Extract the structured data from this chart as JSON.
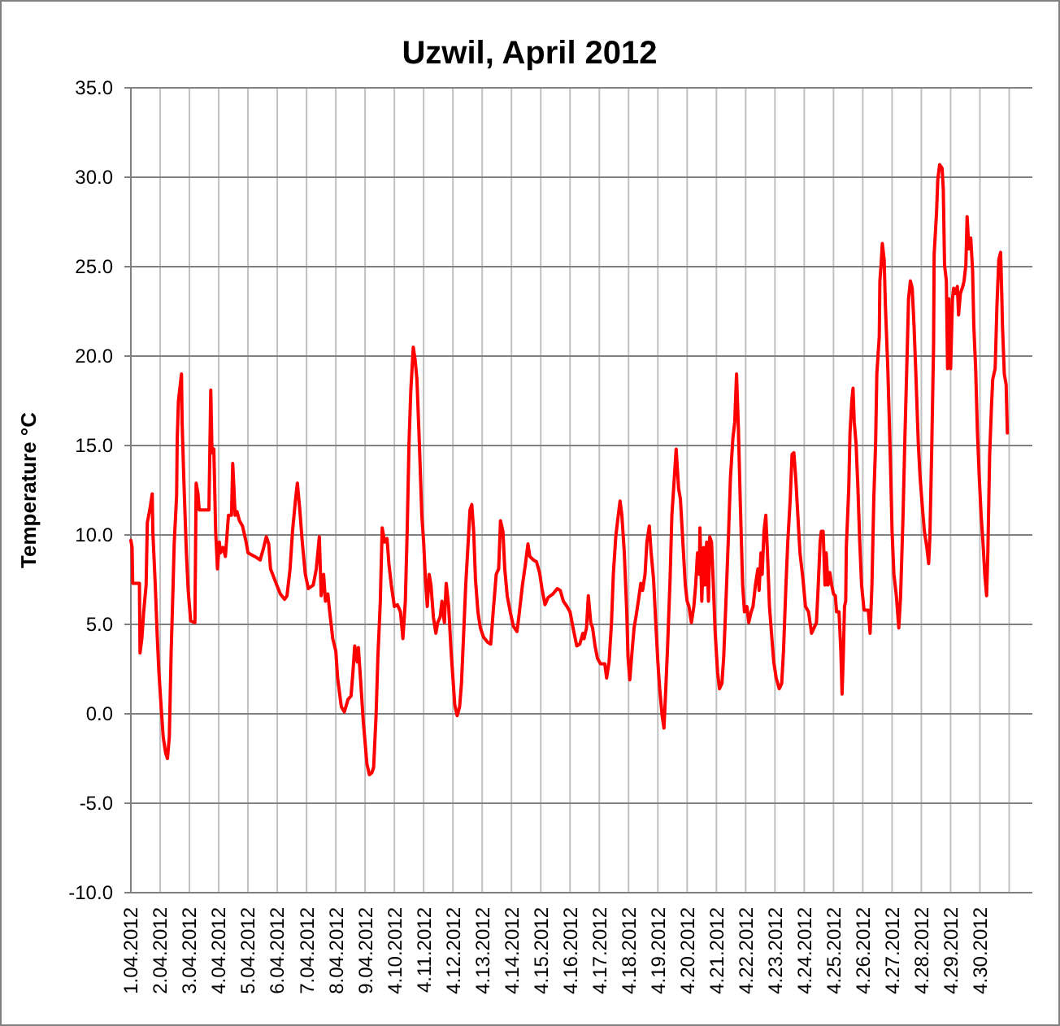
{
  "chart_data": {
    "type": "line",
    "title": "Uzwil, April 2012",
    "ylabel": "Temperature °C",
    "x": [
      "2012-04-01T00:00",
      "2012-04-01T01:00",
      "2012-04-01T01:30",
      "2012-04-01T07:00",
      "2012-04-01T07:30",
      "2012-04-01T09:00",
      "2012-04-01T10:30",
      "2012-04-01T12:30",
      "2012-04-01T13:30",
      "2012-04-01T15:30",
      "2012-04-01T17:30",
      "2012-04-01T18:00",
      "2012-04-01T20:00",
      "2012-04-01T21:30",
      "2012-04-01T23:00",
      "2012-04-02T01:00",
      "2012-04-02T02:30",
      "2012-04-02T04:30",
      "2012-04-02T06:00",
      "2012-04-02T07:30",
      "2012-04-02T09:00",
      "2012-04-02T10:30",
      "2012-04-02T11:30",
      "2012-04-02T13:30",
      "2012-04-02T14:00",
      "2012-04-02T15:00",
      "2012-04-02T16:00",
      "2012-04-02T17:30",
      "2012-04-02T18:00",
      "2012-04-02T19:30",
      "2012-04-02T21:30",
      "2012-04-02T23:00",
      "2012-04-03T01:00",
      "2012-04-03T04:30",
      "2012-04-03T05:30",
      "2012-04-03T07:00",
      "2012-04-03T08:00",
      "2012-04-03T16:00",
      "2012-04-03T17:30",
      "2012-04-03T18:30",
      "2012-04-03T20:00",
      "2012-04-03T21:30",
      "2012-04-03T23:00",
      "2012-04-04T00:30",
      "2012-04-04T01:30",
      "2012-04-04T03:30",
      "2012-04-04T05:30",
      "2012-04-04T08:00",
      "2012-04-04T10:30",
      "2012-04-04T11:30",
      "2012-04-04T13:30",
      "2012-04-04T15:00",
      "2012-04-04T17:00",
      "2012-04-04T19:30",
      "2012-04-04T22:30",
      "2012-04-05T00:00",
      "2012-04-05T05:30",
      "2012-04-05T10:00",
      "2012-04-05T12:30",
      "2012-04-05T15:00",
      "2012-04-05T17:00",
      "2012-04-05T18:30",
      "2012-04-05T23:00",
      "2012-04-06T02:30",
      "2012-04-06T06:00",
      "2012-04-06T08:00",
      "2012-04-06T10:30",
      "2012-04-06T12:30",
      "2012-04-06T15:00",
      "2012-04-06T16:30",
      "2012-04-06T18:30",
      "2012-04-06T20:30",
      "2012-04-06T23:00",
      "2012-04-07T01:30",
      "2012-04-07T05:30",
      "2012-04-07T08:00",
      "2012-04-07T10:30",
      "2012-04-07T12:00",
      "2012-04-07T14:00",
      "2012-04-07T15:30",
      "2012-04-07T17:30",
      "2012-04-07T19:00",
      "2012-04-07T21:30",
      "2012-04-08T00:00",
      "2012-04-08T01:30",
      "2012-04-08T04:30",
      "2012-04-08T07:00",
      "2012-04-08T10:00",
      "2012-04-08T12:30",
      "2012-04-08T14:00",
      "2012-04-08T15:30",
      "2012-04-08T17:30",
      "2012-04-08T18:30",
      "2012-04-08T20:30",
      "2012-04-08T22:30",
      "2012-04-09T00:00",
      "2012-04-09T01:30",
      "2012-04-09T03:30",
      "2012-04-09T05:30",
      "2012-04-09T07:00",
      "2012-04-09T09:00",
      "2012-04-09T10:30",
      "2012-04-09T12:30",
      "2012-04-09T14:00",
      "2012-04-09T16:00",
      "2012-04-09T18:00",
      "2012-04-09T19:30",
      "2012-04-09T21:30",
      "2012-04-10T00:00",
      "2012-04-10T02:30",
      "2012-04-10T05:00",
      "2012-04-10T07:00",
      "2012-04-10T09:00",
      "2012-04-10T10:30",
      "2012-04-10T12:00",
      "2012-04-10T13:30",
      "2012-04-10T15:30",
      "2012-04-10T17:00",
      "2012-04-10T18:30",
      "2012-04-10T20:30",
      "2012-04-10T22:30",
      "2012-04-11T00:00",
      "2012-04-11T01:30",
      "2012-04-11T03:00",
      "2012-04-11T04:30",
      "2012-04-11T06:00",
      "2012-04-11T08:00",
      "2012-04-11T10:00",
      "2012-04-11T11:30",
      "2012-04-11T13:30",
      "2012-04-11T15:00",
      "2012-04-11T17:00",
      "2012-04-11T18:30",
      "2012-04-11T20:30",
      "2012-04-11T22:30",
      "2012-04-12T00:00",
      "2012-04-12T01:30",
      "2012-04-12T03:30",
      "2012-04-12T05:30",
      "2012-04-12T07:00",
      "2012-04-12T09:00",
      "2012-04-12T10:30",
      "2012-04-12T12:30",
      "2012-04-12T14:00",
      "2012-04-12T15:30",
      "2012-04-12T17:00",
      "2012-04-12T18:30",
      "2012-04-12T20:30",
      "2012-04-12T22:30",
      "2012-04-13T01:00",
      "2012-04-13T04:30",
      "2012-04-13T07:00",
      "2012-04-13T09:00",
      "2012-04-13T11:30",
      "2012-04-13T13:30",
      "2012-04-13T15:00",
      "2012-04-13T17:00",
      "2012-04-13T18:30",
      "2012-04-13T20:30",
      "2012-04-13T23:00",
      "2012-04-14T01:30",
      "2012-04-14T04:30",
      "2012-04-14T06:00",
      "2012-04-14T09:00",
      "2012-04-14T11:30",
      "2012-04-14T13:30",
      "2012-04-14T15:00",
      "2012-04-14T18:00",
      "2012-04-14T20:30",
      "2012-04-14T23:00",
      "2012-04-15T01:00",
      "2012-04-15T03:30",
      "2012-04-15T06:00",
      "2012-04-15T10:00",
      "2012-04-15T13:30",
      "2012-04-15T16:00",
      "2012-04-15T18:30",
      "2012-04-15T21:30",
      "2012-04-16T00:00",
      "2012-04-16T02:30",
      "2012-04-16T05:30",
      "2012-04-16T08:00",
      "2012-04-16T10:30",
      "2012-04-16T11:30",
      "2012-04-16T13:30",
      "2012-04-16T15:00",
      "2012-04-16T17:00",
      "2012-04-16T18:30",
      "2012-04-16T20:30",
      "2012-04-16T22:30",
      "2012-04-17T01:00",
      "2012-04-17T04:30",
      "2012-04-17T06:00",
      "2012-04-17T08:00",
      "2012-04-17T10:00",
      "2012-04-17T11:30",
      "2012-04-17T13:30",
      "2012-04-17T15:00",
      "2012-04-17T17:00",
      "2012-04-17T18:30",
      "2012-04-17T20:30",
      "2012-04-17T22:30",
      "2012-04-17T23:30",
      "2012-04-18T01:00",
      "2012-04-18T02:30",
      "2012-04-18T04:30",
      "2012-04-18T06:00",
      "2012-04-18T08:00",
      "2012-04-18T10:00",
      "2012-04-18T11:30",
      "2012-04-18T13:30",
      "2012-04-18T15:00",
      "2012-04-18T17:00",
      "2012-04-18T18:30",
      "2012-04-18T20:30",
      "2012-04-18T22:30",
      "2012-04-19T00:00",
      "2012-04-19T01:30",
      "2012-04-19T03:30",
      "2012-04-19T05:00",
      "2012-04-19T06:30",
      "2012-04-19T08:00",
      "2012-04-19T10:00",
      "2012-04-19T11:30",
      "2012-04-19T13:30",
      "2012-04-19T15:00",
      "2012-04-19T17:00",
      "2012-04-19T18:30",
      "2012-04-19T20:30",
      "2012-04-19T22:30",
      "2012-04-20T00:00",
      "2012-04-20T01:30",
      "2012-04-20T03:30",
      "2012-04-20T05:30",
      "2012-04-20T07:00",
      "2012-04-20T08:30",
      "2012-04-20T10:00",
      "2012-04-20T10:30",
      "2012-04-20T12:00",
      "2012-04-20T13:30",
      "2012-04-20T14:30",
      "2012-04-20T16:00",
      "2012-04-20T17:30",
      "2012-04-20T18:30",
      "2012-04-20T20:00",
      "2012-04-20T21:30",
      "2012-04-20T23:00",
      "2012-04-21T01:00",
      "2012-04-21T02:30",
      "2012-04-21T04:30",
      "2012-04-21T06:00",
      "2012-04-21T08:00",
      "2012-04-21T10:00",
      "2012-04-21T11:30",
      "2012-04-21T13:30",
      "2012-04-21T15:00",
      "2012-04-21T16:30",
      "2012-04-21T18:00",
      "2012-04-21T19:30",
      "2012-04-21T21:30",
      "2012-04-21T23:00",
      "2012-04-22T01:00",
      "2012-04-22T02:30",
      "2012-04-22T04:30",
      "2012-04-22T06:00",
      "2012-04-22T08:00",
      "2012-04-22T10:00",
      "2012-04-22T11:00",
      "2012-04-22T12:30",
      "2012-04-22T13:30",
      "2012-04-22T15:00",
      "2012-04-22T16:30",
      "2012-04-22T18:00",
      "2012-04-22T19:30",
      "2012-04-22T21:30",
      "2012-04-22T23:00",
      "2012-04-23T01:00",
      "2012-04-23T03:30",
      "2012-04-23T05:30",
      "2012-04-23T07:00",
      "2012-04-23T09:00",
      "2012-04-23T10:30",
      "2012-04-23T12:30",
      "2012-04-23T14:00",
      "2012-04-23T15:30",
      "2012-04-23T17:00",
      "2012-04-23T18:30",
      "2012-04-23T20:30",
      "2012-04-23T23:00",
      "2012-04-24T01:00",
      "2012-04-24T03:30",
      "2012-04-24T06:00",
      "2012-04-24T08:00",
      "2012-04-24T10:00",
      "2012-04-24T11:30",
      "2012-04-24T13:00",
      "2012-04-24T14:00",
      "2012-04-24T15:30",
      "2012-04-24T17:00",
      "2012-04-24T18:00",
      "2012-04-24T19:30",
      "2012-04-24T21:00",
      "2012-04-24T22:30",
      "2012-04-25T00:00",
      "2012-04-25T01:30",
      "2012-04-25T02:30",
      "2012-04-25T04:30",
      "2012-04-25T06:00",
      "2012-04-25T07:00",
      "2012-04-25T08:00",
      "2012-04-25T09:00",
      "2012-04-25T10:00",
      "2012-04-25T10:30",
      "2012-04-25T12:30",
      "2012-04-25T13:30",
      "2012-04-25T15:00",
      "2012-04-25T16:00",
      "2012-04-25T17:00",
      "2012-04-25T18:30",
      "2012-04-25T20:00",
      "2012-04-25T21:30",
      "2012-04-25T23:00",
      "2012-04-26T01:00",
      "2012-04-26T04:30",
      "2012-04-26T06:00",
      "2012-04-26T07:30",
      "2012-04-26T09:00",
      "2012-04-26T10:30",
      "2012-04-26T11:30",
      "2012-04-26T13:30",
      "2012-04-26T14:00",
      "2012-04-26T15:00",
      "2012-04-26T16:00",
      "2012-04-26T17:30",
      "2012-04-26T18:30",
      "2012-04-26T20:30",
      "2012-04-26T22:30",
      "2012-04-27T00:00",
      "2012-04-27T01:30",
      "2012-04-27T03:30",
      "2012-04-27T05:30",
      "2012-04-27T07:00",
      "2012-04-27T09:00",
      "2012-04-27T10:30",
      "2012-04-27T12:30",
      "2012-04-27T13:30",
      "2012-04-27T15:00",
      "2012-04-27T16:30",
      "2012-04-27T18:00",
      "2012-04-27T19:30",
      "2012-04-27T21:30",
      "2012-04-27T23:00",
      "2012-04-28T01:00",
      "2012-04-28T02:30",
      "2012-04-28T04:30",
      "2012-04-28T06:00",
      "2012-04-28T07:00",
      "2012-04-28T08:30",
      "2012-04-28T10:00",
      "2012-04-28T10:30",
      "2012-04-28T12:30",
      "2012-04-28T13:30",
      "2012-04-28T15:00",
      "2012-04-28T17:00",
      "2012-04-28T18:00",
      "2012-04-28T19:00",
      "2012-04-28T20:30",
      "2012-04-28T21:30",
      "2012-04-28T22:30",
      "2012-04-29T00:00",
      "2012-04-29T01:30",
      "2012-04-29T02:30",
      "2012-04-29T04:00",
      "2012-04-29T05:30",
      "2012-04-29T06:30",
      "2012-04-29T08:00",
      "2012-04-29T10:00",
      "2012-04-29T11:00",
      "2012-04-29T12:30",
      "2012-04-29T13:30",
      "2012-04-29T15:00",
      "2012-04-29T16:30",
      "2012-04-29T18:00",
      "2012-04-29T19:00",
      "2012-04-29T20:30",
      "2012-04-29T22:00",
      "2012-04-29T23:30",
      "2012-04-30T01:00",
      "2012-04-30T02:30",
      "2012-04-30T04:00",
      "2012-04-30T05:30",
      "2012-04-30T06:30",
      "2012-04-30T08:00",
      "2012-04-30T09:30",
      "2012-04-30T10:30",
      "2012-04-30T12:30",
      "2012-04-30T14:00",
      "2012-04-30T15:30",
      "2012-04-30T17:00",
      "2012-04-30T18:00",
      "2012-04-30T18:30",
      "2012-04-30T20:00",
      "2012-04-30T21:30",
      "2012-04-30T22:30"
    ],
    "series": [
      {
        "color": "#ff0000",
        "values": [
          9.7,
          9.3,
          7.3,
          7.3,
          3.4,
          4.2,
          5.7,
          7.2,
          10.7,
          11.4,
          12.3,
          10.2,
          7.2,
          4.5,
          2.3,
          0.2,
          -1.3,
          -2.2,
          -2.5,
          -1.3,
          3.4,
          6.9,
          9.5,
          12.2,
          15.4,
          17.5,
          18.1,
          19.0,
          16.3,
          12.9,
          9.0,
          6.9,
          5.2,
          5.1,
          12.9,
          12.3,
          11.4,
          11.4,
          18.1,
          14.6,
          14.8,
          10.2,
          8.1,
          9.6,
          9.0,
          9.3,
          8.8,
          11.1,
          11.1,
          14.0,
          11.1,
          11.3,
          10.8,
          10.5,
          9.6,
          9.0,
          8.8,
          8.6,
          9.2,
          9.9,
          9.5,
          8.1,
          7.3,
          6.7,
          6.4,
          6.6,
          8.1,
          10.2,
          12.0,
          12.9,
          11.4,
          9.6,
          7.8,
          7.0,
          7.2,
          8.1,
          9.9,
          6.6,
          7.8,
          6.3,
          6.7,
          5.7,
          4.2,
          3.5,
          2.0,
          0.4,
          0.1,
          0.8,
          1.0,
          2.3,
          3.8,
          2.9,
          3.7,
          1.7,
          -0.4,
          -1.6,
          -2.8,
          -3.4,
          -3.3,
          -3.0,
          -0.1,
          3.2,
          6.3,
          10.4,
          9.6,
          9.8,
          8.4,
          7.2,
          6.0,
          6.1,
          5.7,
          4.2,
          6.3,
          10.2,
          15.1,
          18.1,
          20.5,
          19.8,
          18.7,
          15.1,
          11.1,
          9.6,
          7.5,
          6.0,
          7.8,
          7.2,
          5.4,
          4.5,
          5.1,
          5.4,
          6.3,
          5.1,
          7.3,
          6.0,
          3.5,
          2.0,
          0.5,
          -0.1,
          0.4,
          1.7,
          4.8,
          7.2,
          9.6,
          11.4,
          11.7,
          10.2,
          7.5,
          5.7,
          4.8,
          4.3,
          4.0,
          3.9,
          5.7,
          7.8,
          8.1,
          10.8,
          10.2,
          8.1,
          6.6,
          5.7,
          4.9,
          4.6,
          5.4,
          7.2,
          8.4,
          9.5,
          8.8,
          8.6,
          8.5,
          7.9,
          7.0,
          6.1,
          6.5,
          6.7,
          7.0,
          6.9,
          6.3,
          6.0,
          5.7,
          4.8,
          3.8,
          3.9,
          4.5,
          4.2,
          4.8,
          6.6,
          5.1,
          4.8,
          3.8,
          3.1,
          2.8,
          2.8,
          2.0,
          2.9,
          5.1,
          7.8,
          9.9,
          10.8,
          11.9,
          11.1,
          9.0,
          5.7,
          3.2,
          1.9,
          3.2,
          4.8,
          5.4,
          6.3,
          7.3,
          6.9,
          7.8,
          9.6,
          10.5,
          9.0,
          7.5,
          4.8,
          2.9,
          1.4,
          -0.1,
          -0.8,
          1.4,
          3.8,
          7.5,
          11.1,
          13.2,
          14.8,
          12.6,
          12.0,
          9.6,
          7.2,
          6.3,
          6.0,
          5.1,
          6.0,
          7.2,
          9.0,
          7.8,
          10.4,
          6.3,
          9.3,
          7.2,
          9.6,
          6.3,
          9.9,
          9.6,
          7.2,
          4.5,
          2.3,
          1.4,
          1.7,
          3.2,
          6.6,
          10.2,
          13.2,
          15.4,
          16.3,
          19.0,
          16.0,
          12.0,
          7.2,
          5.7,
          6.0,
          5.1,
          5.7,
          6.0,
          7.2,
          8.1,
          6.9,
          9.0,
          7.8,
          10.2,
          11.1,
          8.7,
          6.0,
          4.2,
          2.9,
          2.0,
          1.4,
          1.7,
          3.5,
          7.2,
          9.6,
          12.0,
          14.5,
          14.6,
          13.2,
          11.4,
          9.0,
          7.5,
          6.0,
          5.7,
          4.5,
          4.8,
          5.1,
          7.2,
          9.6,
          10.2,
          10.2,
          7.2,
          9.0,
          7.2,
          7.9,
          7.2,
          6.7,
          6.6,
          5.7,
          5.7,
          3.5,
          1.1,
          3.2,
          6.0,
          6.3,
          9.3,
          12.6,
          15.7,
          17.5,
          18.2,
          16.3,
          15.1,
          12.6,
          9.6,
          7.2,
          5.8,
          5.8,
          4.5,
          7.2,
          12.0,
          15.1,
          19.0,
          21.1,
          24.2,
          25.1,
          26.3,
          25.4,
          22.9,
          19.3,
          14.5,
          10.2,
          7.8,
          6.6,
          4.8,
          6.6,
          11.1,
          15.4,
          20.5,
          23.2,
          24.2,
          23.8,
          21.7,
          19.0,
          15.1,
          13.2,
          11.4,
          10.2,
          9.3,
          8.4,
          9.9,
          14.8,
          20.5,
          25.7,
          28.1,
          29.9,
          30.7,
          30.5,
          29.3,
          25.1,
          24.2,
          19.3,
          23.2,
          19.3,
          23.2,
          23.8,
          23.5,
          23.9,
          22.3,
          23.5,
          23.9,
          24.2,
          25.1,
          27.8,
          26.0,
          26.6,
          24.8,
          21.7,
          19.3,
          15.7,
          13.2,
          11.1,
          9.6,
          7.8,
          6.6,
          9.0,
          14.5,
          17.2,
          18.7,
          19.3,
          22.9,
          25.4,
          25.8,
          23.2,
          21.7,
          19.0,
          18.4,
          15.7
        ]
      }
    ],
    "xlim": [
      "2012-04-01T00:00",
      "2012-05-01T19:00"
    ],
    "xticks": [
      {
        "value": "2012-04-01",
        "label": "1.04.2012"
      },
      {
        "value": "2012-04-02",
        "label": "2.04.2012"
      },
      {
        "value": "2012-04-03",
        "label": "3.04.2012"
      },
      {
        "value": "2012-04-04",
        "label": "4.04.2012"
      },
      {
        "value": "2012-04-05",
        "label": "5.04.2012"
      },
      {
        "value": "2012-04-06",
        "label": "6.04.2012"
      },
      {
        "value": "2012-04-07",
        "label": "7.04.2012"
      },
      {
        "value": "2012-04-08",
        "label": "8.04.2012"
      },
      {
        "value": "2012-04-09",
        "label": "9.04.2012"
      },
      {
        "value": "2012-04-10",
        "label": "4.10.2012"
      },
      {
        "value": "2012-04-11",
        "label": "4.11.2012"
      },
      {
        "value": "2012-04-12",
        "label": "4.12.2012"
      },
      {
        "value": "2012-04-13",
        "label": "4.13.2012"
      },
      {
        "value": "2012-04-14",
        "label": "4.14.2012"
      },
      {
        "value": "2012-04-15",
        "label": "4.15.2012"
      },
      {
        "value": "2012-04-16",
        "label": "4.16.2012"
      },
      {
        "value": "2012-04-17",
        "label": "4.17.2012"
      },
      {
        "value": "2012-04-18",
        "label": "4.18.2012"
      },
      {
        "value": "2012-04-19",
        "label": "4.19.2012"
      },
      {
        "value": "2012-04-20",
        "label": "4.20.2012"
      },
      {
        "value": "2012-04-21",
        "label": "4.21.2012"
      },
      {
        "value": "2012-04-22",
        "label": "4.22.2012"
      },
      {
        "value": "2012-04-23",
        "label": "4.23.2012"
      },
      {
        "value": "2012-04-24",
        "label": "4.24.2012"
      },
      {
        "value": "2012-04-25",
        "label": "4.25.2012"
      },
      {
        "value": "2012-04-26",
        "label": "4.26.2012"
      },
      {
        "value": "2012-04-27",
        "label": "4.27.2012"
      },
      {
        "value": "2012-04-28",
        "label": "4.28.2012"
      },
      {
        "value": "2012-04-29",
        "label": "4.29.2012"
      },
      {
        "value": "2012-04-30",
        "label": "4.30.2012"
      },
      {
        "value": "2012-05-01",
        "label": null
      }
    ],
    "ylim": [
      -10,
      35
    ],
    "yticks": [
      {
        "value": -10,
        "label": "-10.0"
      },
      {
        "value": -5,
        "label": "-5.0"
      },
      {
        "value": 0,
        "label": "0.0"
      },
      {
        "value": 5,
        "label": "5.0"
      },
      {
        "value": 10,
        "label": "10.0"
      },
      {
        "value": 15,
        "label": "15.0"
      },
      {
        "value": 20,
        "label": "20.0"
      },
      {
        "value": 25,
        "label": "25.0"
      },
      {
        "value": 30,
        "label": "30.0"
      },
      {
        "value": 35,
        "label": "35.0"
      }
    ],
    "grid": true
  }
}
